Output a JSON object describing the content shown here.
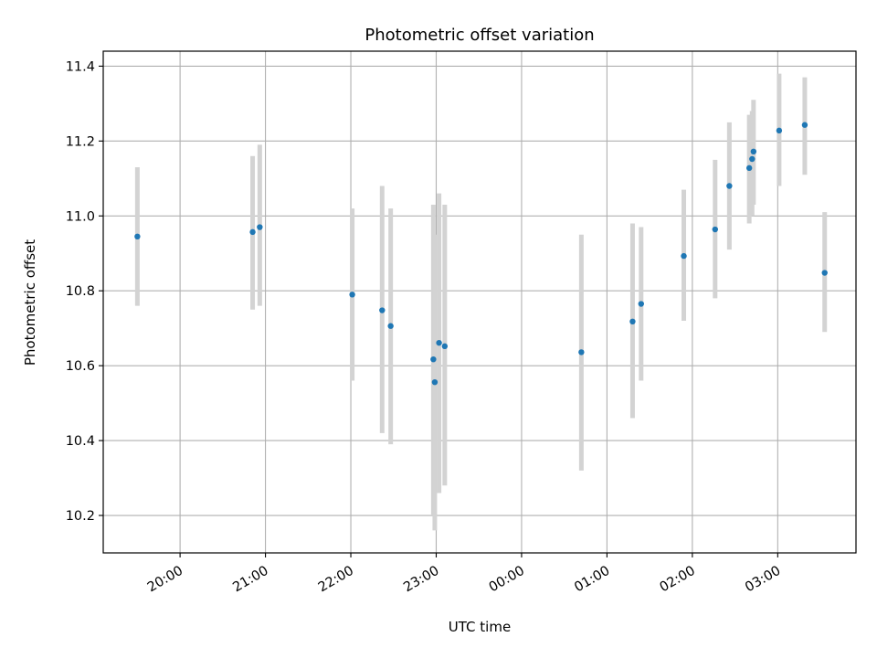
{
  "colors": {
    "point": "#1f77b4",
    "error_bar": "#d3d3d3",
    "grid": "#b0b0b0",
    "axes": "#000000"
  },
  "chart_data": {
    "type": "scatter",
    "title": "Photometric offset variation",
    "xlabel": "UTC time",
    "ylabel": "Photometric offset",
    "x_unit": "UTC time (hours; values past 24:00 continue into the next day)",
    "xlim": [
      "19:06",
      "27:55"
    ],
    "ylim": [
      10.1,
      11.44
    ],
    "grid": true,
    "legend": "none",
    "error_bars": "vertical",
    "x_ticks": [
      {
        "at": "20:00",
        "label": "20:00"
      },
      {
        "at": "21:00",
        "label": "21:00"
      },
      {
        "at": "22:00",
        "label": "22:00"
      },
      {
        "at": "23:00",
        "label": "23:00"
      },
      {
        "at": "24:00",
        "label": "00:00"
      },
      {
        "at": "25:00",
        "label": "01:00"
      },
      {
        "at": "26:00",
        "label": "02:00"
      },
      {
        "at": "27:00",
        "label": "03:00"
      }
    ],
    "y_ticks": [
      {
        "value": 10.2,
        "label": "10.2"
      },
      {
        "value": 10.4,
        "label": "10.4"
      },
      {
        "value": 10.6,
        "label": "10.6"
      },
      {
        "value": 10.8,
        "label": "10.8"
      },
      {
        "value": 11.0,
        "label": "11.0"
      },
      {
        "value": 11.2,
        "label": "11.2"
      },
      {
        "value": 11.4,
        "label": "11.4"
      }
    ],
    "points": [
      {
        "x": "19:30",
        "y": 10.945,
        "ylow": 10.76,
        "yhigh": 11.13
      },
      {
        "x": "20:51",
        "y": 10.957,
        "ylow": 10.75,
        "yhigh": 11.16
      },
      {
        "x": "20:56",
        "y": 10.97,
        "ylow": 10.76,
        "yhigh": 11.19
      },
      {
        "x": "22:01",
        "y": 10.79,
        "ylow": 10.56,
        "yhigh": 11.02
      },
      {
        "x": "22:22",
        "y": 10.748,
        "ylow": 10.42,
        "yhigh": 11.08
      },
      {
        "x": "22:28",
        "y": 10.706,
        "ylow": 10.39,
        "yhigh": 11.02
      },
      {
        "x": "22:58",
        "y": 10.617,
        "ylow": 10.2,
        "yhigh": 11.03
      },
      {
        "x": "22:59",
        "y": 10.556,
        "ylow": 10.16,
        "yhigh": 10.95
      },
      {
        "x": "23:02",
        "y": 10.661,
        "ylow": 10.26,
        "yhigh": 11.06
      },
      {
        "x": "23:06",
        "y": 10.652,
        "ylow": 10.28,
        "yhigh": 11.03
      },
      {
        "x": "24:42",
        "y": 10.636,
        "ylow": 10.32,
        "yhigh": 10.95
      },
      {
        "x": "25:18",
        "y": 10.718,
        "ylow": 10.46,
        "yhigh": 10.98
      },
      {
        "x": "25:24",
        "y": 10.765,
        "ylow": 10.56,
        "yhigh": 10.97
      },
      {
        "x": "25:54",
        "y": 10.893,
        "ylow": 10.72,
        "yhigh": 11.07
      },
      {
        "x": "26:16",
        "y": 10.964,
        "ylow": 10.78,
        "yhigh": 11.15
      },
      {
        "x": "26:26",
        "y": 11.08,
        "ylow": 10.91,
        "yhigh": 11.25
      },
      {
        "x": "26:40",
        "y": 11.128,
        "ylow": 10.98,
        "yhigh": 11.27
      },
      {
        "x": "26:42",
        "y": 11.152,
        "ylow": 11.0,
        "yhigh": 11.28
      },
      {
        "x": "26:43",
        "y": 11.172,
        "ylow": 11.03,
        "yhigh": 11.31
      },
      {
        "x": "27:01",
        "y": 11.228,
        "ylow": 11.08,
        "yhigh": 11.38
      },
      {
        "x": "27:19",
        "y": 11.243,
        "ylow": 11.11,
        "yhigh": 11.37
      },
      {
        "x": "27:33",
        "y": 10.848,
        "ylow": 10.69,
        "yhigh": 11.01
      }
    ]
  }
}
